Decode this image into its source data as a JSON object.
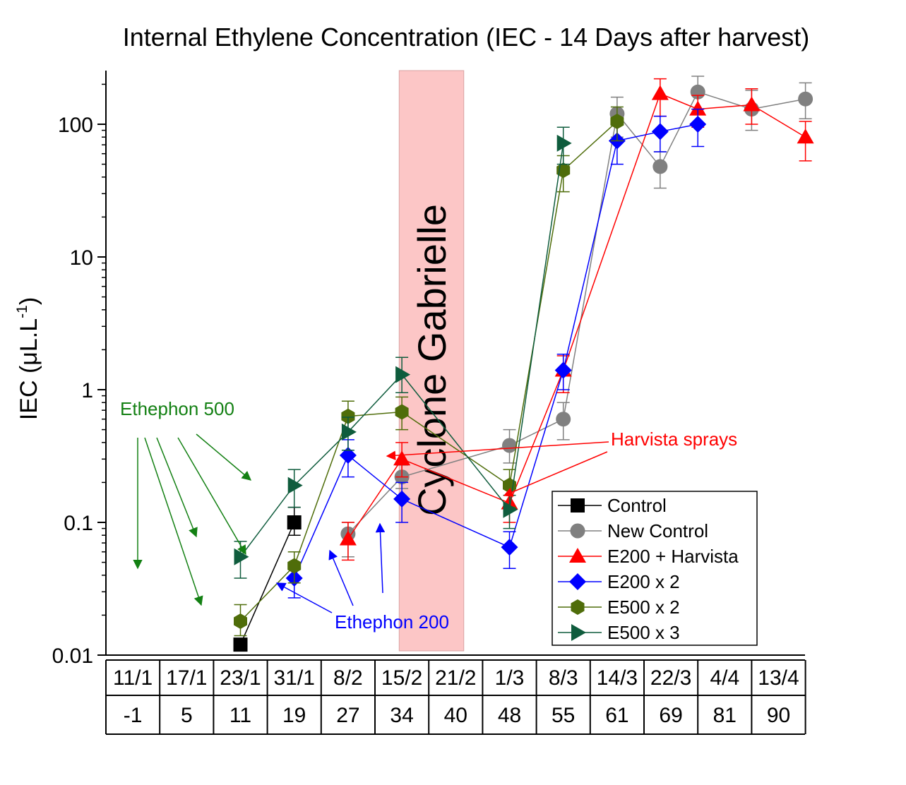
{
  "chart_data": {
    "type": "line",
    "title": "Internal Ethylene Concentration (IEC - 14 Days after harvest)",
    "ylabel": "IEC (μL.L",
    "ylabel_sup": "-1",
    "ylabel_close": ")",
    "yscale": "log",
    "ylim": [
      0.01,
      250
    ],
    "yticks": [
      {
        "v": 0.01,
        "label": "0.01"
      },
      {
        "v": 0.1,
        "label": "0.1"
      },
      {
        "v": 1,
        "label": "1"
      },
      {
        "v": 10,
        "label": "10"
      },
      {
        "v": 100,
        "label": "100"
      }
    ],
    "categories": [
      "11/1",
      "17/1",
      "23/1",
      "31/1",
      "8/2",
      "15/2",
      "21/2",
      "1/3",
      "8/3",
      "14/3",
      "22/3",
      "4/4",
      "13/4"
    ],
    "days": [
      "-1",
      "5",
      "11",
      "19",
      "27",
      "34",
      "40",
      "48",
      "55",
      "61",
      "69",
      "81",
      "90"
    ],
    "series": [
      {
        "name": "Control",
        "color": "#000000",
        "marker": "square",
        "points": [
          {
            "x": 2,
            "y": 0.012,
            "lo": 0.011,
            "hi": 0.013
          },
          {
            "x": 3,
            "y": 0.1,
            "lo": 0.08,
            "hi": 0.13
          }
        ]
      },
      {
        "name": "New Control",
        "color": "#808080",
        "marker": "circle",
        "points": [
          {
            "x": 4,
            "y": 0.082,
            "lo": 0.055,
            "hi": 0.1
          },
          {
            "x": 5,
            "y": 0.22,
            "lo": 0.18,
            "hi": 0.27
          },
          {
            "x": 7,
            "y": 0.38,
            "lo": 0.28,
            "hi": 0.5
          },
          {
            "x": 8,
            "y": 0.6,
            "lo": 0.42,
            "hi": 0.8
          },
          {
            "x": 9,
            "y": 120,
            "lo": 80,
            "hi": 160
          },
          {
            "x": 9.8,
            "y": 48,
            "lo": 33,
            "hi": 62
          },
          {
            "x": 10.5,
            "y": 175,
            "lo": 130,
            "hi": 230
          },
          {
            "x": 11.5,
            "y": 130,
            "lo": 90,
            "hi": 180
          },
          {
            "x": 12.5,
            "y": 155,
            "lo": 110,
            "hi": 205
          }
        ]
      },
      {
        "name": "E200 + Harvista",
        "color": "#ff0000",
        "marker": "triangle-up",
        "points": [
          {
            "x": 4,
            "y": 0.075,
            "lo": 0.052,
            "hi": 0.1
          },
          {
            "x": 5,
            "y": 0.3,
            "lo": 0.22,
            "hi": 0.4
          },
          {
            "x": 7,
            "y": 0.14,
            "lo": 0.1,
            "hi": 0.19
          },
          {
            "x": 8,
            "y": 1.4,
            "lo": 0.95,
            "hi": 1.8
          },
          {
            "x": 9.8,
            "y": 170,
            "lo": 115,
            "hi": 220
          },
          {
            "x": 10.5,
            "y": 130,
            "lo": 95,
            "hi": 165
          },
          {
            "x": 11.5,
            "y": 140,
            "lo": 100,
            "hi": 185
          },
          {
            "x": 12.5,
            "y": 80,
            "lo": 53,
            "hi": 105
          }
        ]
      },
      {
        "name": "E200 x 2",
        "color": "#0000ff",
        "marker": "diamond",
        "points": [
          {
            "x": 3,
            "y": 0.038,
            "lo": 0.027,
            "hi": 0.05
          },
          {
            "x": 4,
            "y": 0.32,
            "lo": 0.22,
            "hi": 0.42
          },
          {
            "x": 5,
            "y": 0.15,
            "lo": 0.1,
            "hi": 0.2
          },
          {
            "x": 7,
            "y": 0.065,
            "lo": 0.045,
            "hi": 0.085
          },
          {
            "x": 8,
            "y": 1.4,
            "lo": 1.0,
            "hi": 1.85
          },
          {
            "x": 9,
            "y": 75,
            "lo": 50,
            "hi": 100
          },
          {
            "x": 9.8,
            "y": 88,
            "lo": 62,
            "hi": 115
          },
          {
            "x": 10.5,
            "y": 100,
            "lo": 68,
            "hi": 130
          }
        ]
      },
      {
        "name": "E500 x 2",
        "color": "#4f6d0a",
        "marker": "hexagon",
        "points": [
          {
            "x": 2,
            "y": 0.018,
            "lo": 0.014,
            "hi": 0.024
          },
          {
            "x": 3,
            "y": 0.047,
            "lo": 0.035,
            "hi": 0.06
          },
          {
            "x": 4,
            "y": 0.63,
            "lo": 0.48,
            "hi": 0.82
          },
          {
            "x": 5,
            "y": 0.68,
            "lo": 0.5,
            "hi": 0.88
          },
          {
            "x": 7,
            "y": 0.19,
            "lo": 0.13,
            "hi": 0.25
          },
          {
            "x": 8,
            "y": 45,
            "lo": 31,
            "hi": 58
          },
          {
            "x": 9,
            "y": 105,
            "lo": 75,
            "hi": 135
          }
        ]
      },
      {
        "name": "E500 x 3",
        "color": "#0f5c3d",
        "marker": "triangle-right",
        "points": [
          {
            "x": 2,
            "y": 0.055,
            "lo": 0.038,
            "hi": 0.072
          },
          {
            "x": 3,
            "y": 0.19,
            "lo": 0.13,
            "hi": 0.25
          },
          {
            "x": 4,
            "y": 0.48,
            "lo": 0.35,
            "hi": 0.62
          },
          {
            "x": 5,
            "y": 1.3,
            "lo": 0.95,
            "hi": 1.75
          },
          {
            "x": 7,
            "y": 0.125,
            "lo": 0.09,
            "hi": 0.16
          },
          {
            "x": 8,
            "y": 72,
            "lo": 50,
            "hi": 95
          }
        ]
      }
    ],
    "event": {
      "label": "Cyclone Gabrielle",
      "from": 5.45,
      "to": 6.65,
      "color": "#fcc6c6"
    },
    "annotations": [
      {
        "text": "Ethephon 500",
        "color": "#138013",
        "tx": 0.3,
        "ty": 0.4
      },
      {
        "text": "Ethephon 200",
        "color": "#0000ff",
        "tx": 5.0,
        "ty": 0.016
      },
      {
        "text": "Harvista sprays",
        "color": "#ff0000",
        "tx": 9.95,
        "ty": 0.32
      }
    ],
    "legend_position": "bottom-right",
    "grid": false
  }
}
